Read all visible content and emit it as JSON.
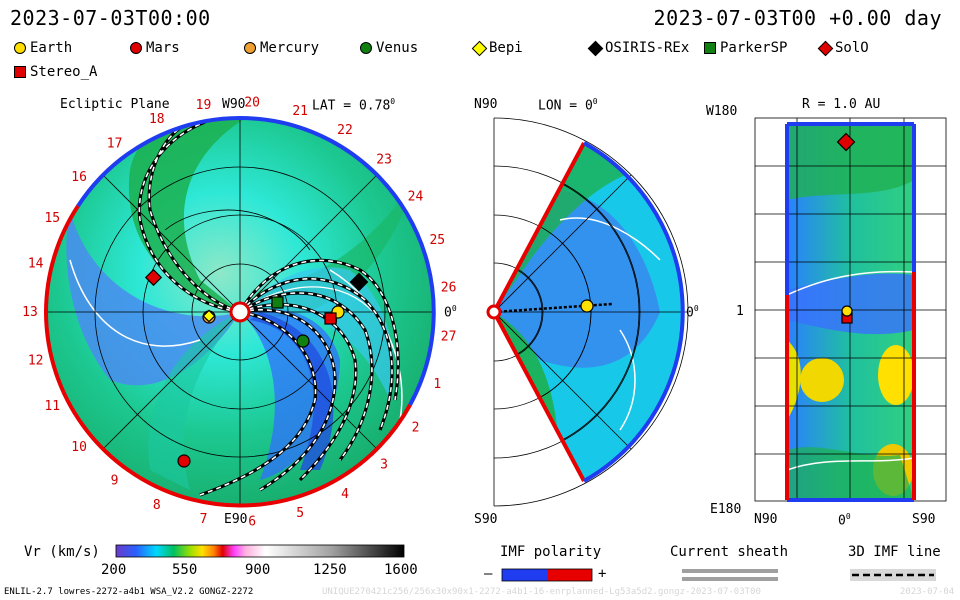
{
  "header": {
    "left_datetime": "2023-07-03T00:00",
    "right_datetime": "2023-07-03T00 +0.00 day"
  },
  "legend": {
    "items": [
      {
        "label": "Earth",
        "shape": "circle",
        "color": "#ffe000"
      },
      {
        "label": "Mars",
        "shape": "circle",
        "color": "#e00000"
      },
      {
        "label": "Mercury",
        "shape": "circle",
        "color": "#f0a030"
      },
      {
        "label": "Venus",
        "shape": "circle",
        "color": "#108010"
      },
      {
        "label": "Bepi",
        "shape": "diamond",
        "color": "#ffff00"
      },
      {
        "label": "OSIRIS-REx",
        "shape": "diamond",
        "color": "#000000"
      },
      {
        "label": "ParkerSP",
        "shape": "square",
        "color": "#108010"
      },
      {
        "label": "SolO",
        "shape": "diamond",
        "color": "#e00000"
      },
      {
        "label": "Stereo_A",
        "shape": "square",
        "color": "#e00000"
      }
    ]
  },
  "ecliptic_panel": {
    "title": "Ecliptic Plane",
    "lat_label": "LAT = 0.78",
    "lat_degree": "0",
    "top_label": "W90",
    "bottom_label": "E90",
    "right_label": "0",
    "right_degree": "0",
    "carrington_numbers": [
      "19",
      "20",
      "21",
      "22",
      "23",
      "24",
      "25",
      "26",
      "27",
      "1",
      "2",
      "3",
      "4",
      "5",
      "6",
      "7",
      "8",
      "9",
      "10",
      "11",
      "12",
      "13",
      "14",
      "15",
      "16",
      "17",
      "18"
    ]
  },
  "meridional_panel": {
    "lon_label": "LON = 0",
    "lon_degree": "0",
    "top_label": "N90",
    "bottom_label": "S90",
    "right_label": "0",
    "right_degree": "0"
  },
  "radial_panel": {
    "title": "R = 1.0 AU",
    "top_label": "W180",
    "bottom_label": "E180",
    "left_label": "1",
    "x_left": "N90",
    "x_mid": "0",
    "x_mid_degree": "0",
    "x_right": "S90"
  },
  "colorbar": {
    "label": "Vr (km/s)",
    "ticks": [
      "200",
      "550",
      "900",
      "1250",
      "1600"
    ]
  },
  "imf_polarity": {
    "title": "IMF polarity",
    "minus": "–",
    "plus": "+"
  },
  "current_sheath": {
    "title": "Current sheath"
  },
  "imf_line": {
    "title": "3D IMF line"
  },
  "footer": {
    "version": "ENLIL-2.7 lowres-2272-a4b1 WSA_V2.2 GONGZ-2272",
    "watermark_run": "UNIQUE270421c256/256x30x90x1-2272-a4b1-16-enrplanned-Lg53a5d2.gongz-2023-07-03T00",
    "watermark_date": "2023-07-04"
  }
}
